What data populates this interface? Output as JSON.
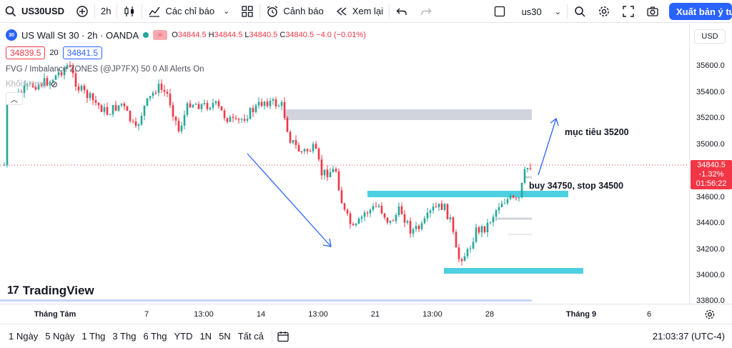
{
  "toolbar": {
    "symbol": "US30USD",
    "interval": "2h",
    "indicators_label": "Các chỉ báo",
    "alerts_label": "Cảnh báo",
    "replay_label": "Xem lại",
    "layout_name": "us30",
    "publish_label": "Xuất bản ý tư"
  },
  "legend": {
    "badge": "30",
    "title": "US Wall St 30 · 2h · OANDA",
    "open_key": "O",
    "open": "34844.5",
    "high_key": "H",
    "high": "34844.5",
    "low_key": "L",
    "low": "34840.5",
    "close_key": "C",
    "close": "34840.5",
    "change": "−4.0 (−0.01%)",
    "bid": "34839.5",
    "spread": "20",
    "ask": "34841.5",
    "indicator": "FVG / Imbalance ZONES (@JP7FX) 50 0 All Alerts On",
    "indicator2": "Khối lượng"
  },
  "price_axis": {
    "currency": "USD",
    "ticks": [
      "35600.0",
      "35400.0",
      "35200.0",
      "35000.0",
      "34600.0",
      "34400.0",
      "34200.0",
      "34000.0",
      "33800.0"
    ],
    "current_price": "34840.5",
    "current_change": "-1.32%",
    "countdown": "01:56:22"
  },
  "annotations": {
    "target": "mục tiêu 35200",
    "entry": "buy 34750, stop 34500"
  },
  "brand": {
    "name": "TradingView",
    "mark": "17"
  },
  "time_axis": {
    "ticks": [
      {
        "label": "Tháng Tám",
        "bold": true
      },
      {
        "label": "7",
        "bold": false
      },
      {
        "label": "13:00",
        "bold": false
      },
      {
        "label": "14",
        "bold": false
      },
      {
        "label": "13:00",
        "bold": false
      },
      {
        "label": "21",
        "bold": false
      },
      {
        "label": "13:00",
        "bold": false
      },
      {
        "label": "28",
        "bold": false
      },
      {
        "label": "Tháng 9",
        "bold": true
      },
      {
        "label": "6",
        "bold": false
      }
    ]
  },
  "bottom": {
    "ranges": [
      "1 Ngày",
      "5 Ngày",
      "1 Thg",
      "3 Thg",
      "6 Thg",
      "YTD",
      "1N",
      "5N",
      "Tất cả"
    ],
    "clock": "21:03:37 (UTC-4)"
  },
  "colors": {
    "up": "#26a69a",
    "down": "#f23645",
    "accent": "#2962ff",
    "zone_cyan": "#4dd0e1",
    "zone_gray": "#d1d4dc"
  }
}
